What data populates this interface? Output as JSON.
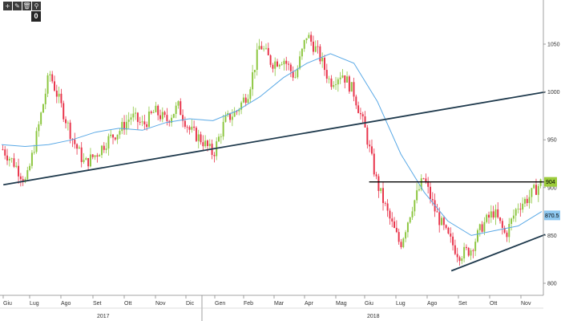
{
  "toolbar": {
    "buttons": [
      {
        "icon": "crosshair-icon",
        "glyph": "+"
      },
      {
        "icon": "pencil-icon",
        "glyph": "✎"
      },
      {
        "icon": "trash-icon",
        "glyph": "🗑"
      },
      {
        "icon": "zoom-icon",
        "glyph": "⚲"
      }
    ],
    "badge": "0"
  },
  "chart_data": {
    "type": "candlestick",
    "x_months": [
      "Giu",
      "Lug",
      "Ago",
      "Set",
      "Ott",
      "Nov",
      "Dic",
      "Gen",
      "Feb",
      "Mar",
      "Apr",
      "Mag",
      "Giu",
      "Lug",
      "Ago",
      "Set",
      "Ott",
      "Nov"
    ],
    "years": [
      "2017",
      "2018"
    ],
    "y_ticks": [
      800,
      850,
      900,
      950,
      1000,
      1050
    ],
    "ylim": [
      790,
      1080
    ],
    "last_price_label": "904",
    "moving_average_label": "870.5",
    "colors": {
      "up": "#8cc63f",
      "down": "#e8334a",
      "moving_average": "#5aa9e6",
      "trendline": "#1f3a4d",
      "resistance": "#000000",
      "price_box": "#9ccc3c",
      "ma_box": "#8ec8f0"
    },
    "price_anchors": [
      [
        0,
        940
      ],
      [
        1,
        925
      ],
      [
        2,
        905
      ],
      [
        3,
        960
      ],
      [
        4,
        1020
      ],
      [
        5,
        985
      ],
      [
        6,
        950
      ],
      [
        7,
        925
      ],
      [
        8,
        935
      ],
      [
        9,
        950
      ],
      [
        10,
        960
      ],
      [
        11,
        975
      ],
      [
        12,
        965
      ],
      [
        13,
        980
      ],
      [
        14,
        970
      ],
      [
        15,
        985
      ],
      [
        16,
        960
      ],
      [
        17,
        950
      ],
      [
        18,
        935
      ],
      [
        19,
        970
      ],
      [
        20,
        980
      ],
      [
        21,
        1000
      ],
      [
        22,
        1050
      ],
      [
        23,
        1030
      ],
      [
        24,
        1035
      ],
      [
        25,
        1015
      ],
      [
        26,
        1060
      ],
      [
        27,
        1040
      ],
      [
        28,
        1010
      ],
      [
        29,
        1020
      ],
      [
        30,
        1000
      ],
      [
        31,
        960
      ],
      [
        32,
        905
      ],
      [
        33,
        870
      ],
      [
        34,
        840
      ],
      [
        35,
        880
      ],
      [
        36,
        910
      ],
      [
        37,
        875
      ],
      [
        38,
        850
      ],
      [
        39,
        830
      ],
      [
        40,
        835
      ],
      [
        41,
        860
      ],
      [
        42,
        875
      ],
      [
        43,
        850
      ],
      [
        44,
        880
      ],
      [
        45,
        890
      ],
      [
        46,
        905
      ]
    ],
    "moving_average": [
      [
        0,
        945
      ],
      [
        2,
        943
      ],
      [
        4,
        945
      ],
      [
        6,
        950
      ],
      [
        8,
        958
      ],
      [
        10,
        962
      ],
      [
        12,
        960
      ],
      [
        14,
        968
      ],
      [
        16,
        972
      ],
      [
        18,
        970
      ],
      [
        20,
        980
      ],
      [
        22,
        995
      ],
      [
        24,
        1015
      ],
      [
        26,
        1030
      ],
      [
        28,
        1040
      ],
      [
        30,
        1030
      ],
      [
        32,
        990
      ],
      [
        34,
        935
      ],
      [
        36,
        895
      ],
      [
        38,
        865
      ],
      [
        40,
        850
      ],
      [
        42,
        855
      ],
      [
        44,
        860
      ],
      [
        46,
        875
      ]
    ],
    "trendlines": [
      {
        "name": "support-long",
        "points": [
          [
            0.15,
            903
          ],
          [
            46.3,
            1000
          ]
        ]
      },
      {
        "name": "support-recent",
        "points": [
          [
            38.3,
            813
          ],
          [
            46.3,
            851
          ]
        ]
      },
      {
        "name": "resistance",
        "points": [
          [
            31.3,
            906
          ],
          [
            46.3,
            906
          ]
        ]
      }
    ]
  }
}
